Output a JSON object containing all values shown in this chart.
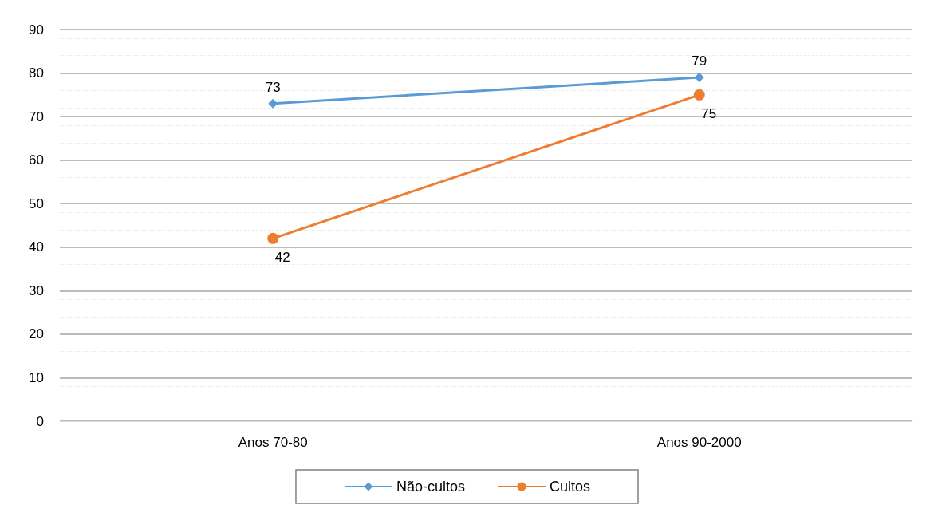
{
  "chart_data": {
    "type": "line",
    "categories": [
      "Anos 70-80",
      "Anos 90-2000"
    ],
    "series": [
      {
        "name": "Não-cultos",
        "color": "#5b9bd5",
        "values": [
          73,
          79
        ],
        "marker": "diamond"
      },
      {
        "name": "Cultos",
        "color": "#ed7d31",
        "values": [
          42,
          75
        ],
        "marker": "circle"
      }
    ],
    "ylim": [
      0,
      90
    ],
    "yticks": [
      0,
      10,
      20,
      30,
      40,
      50,
      60,
      70,
      80,
      90
    ],
    "grid": "y",
    "legend": "bottom",
    "data_labels": true
  }
}
